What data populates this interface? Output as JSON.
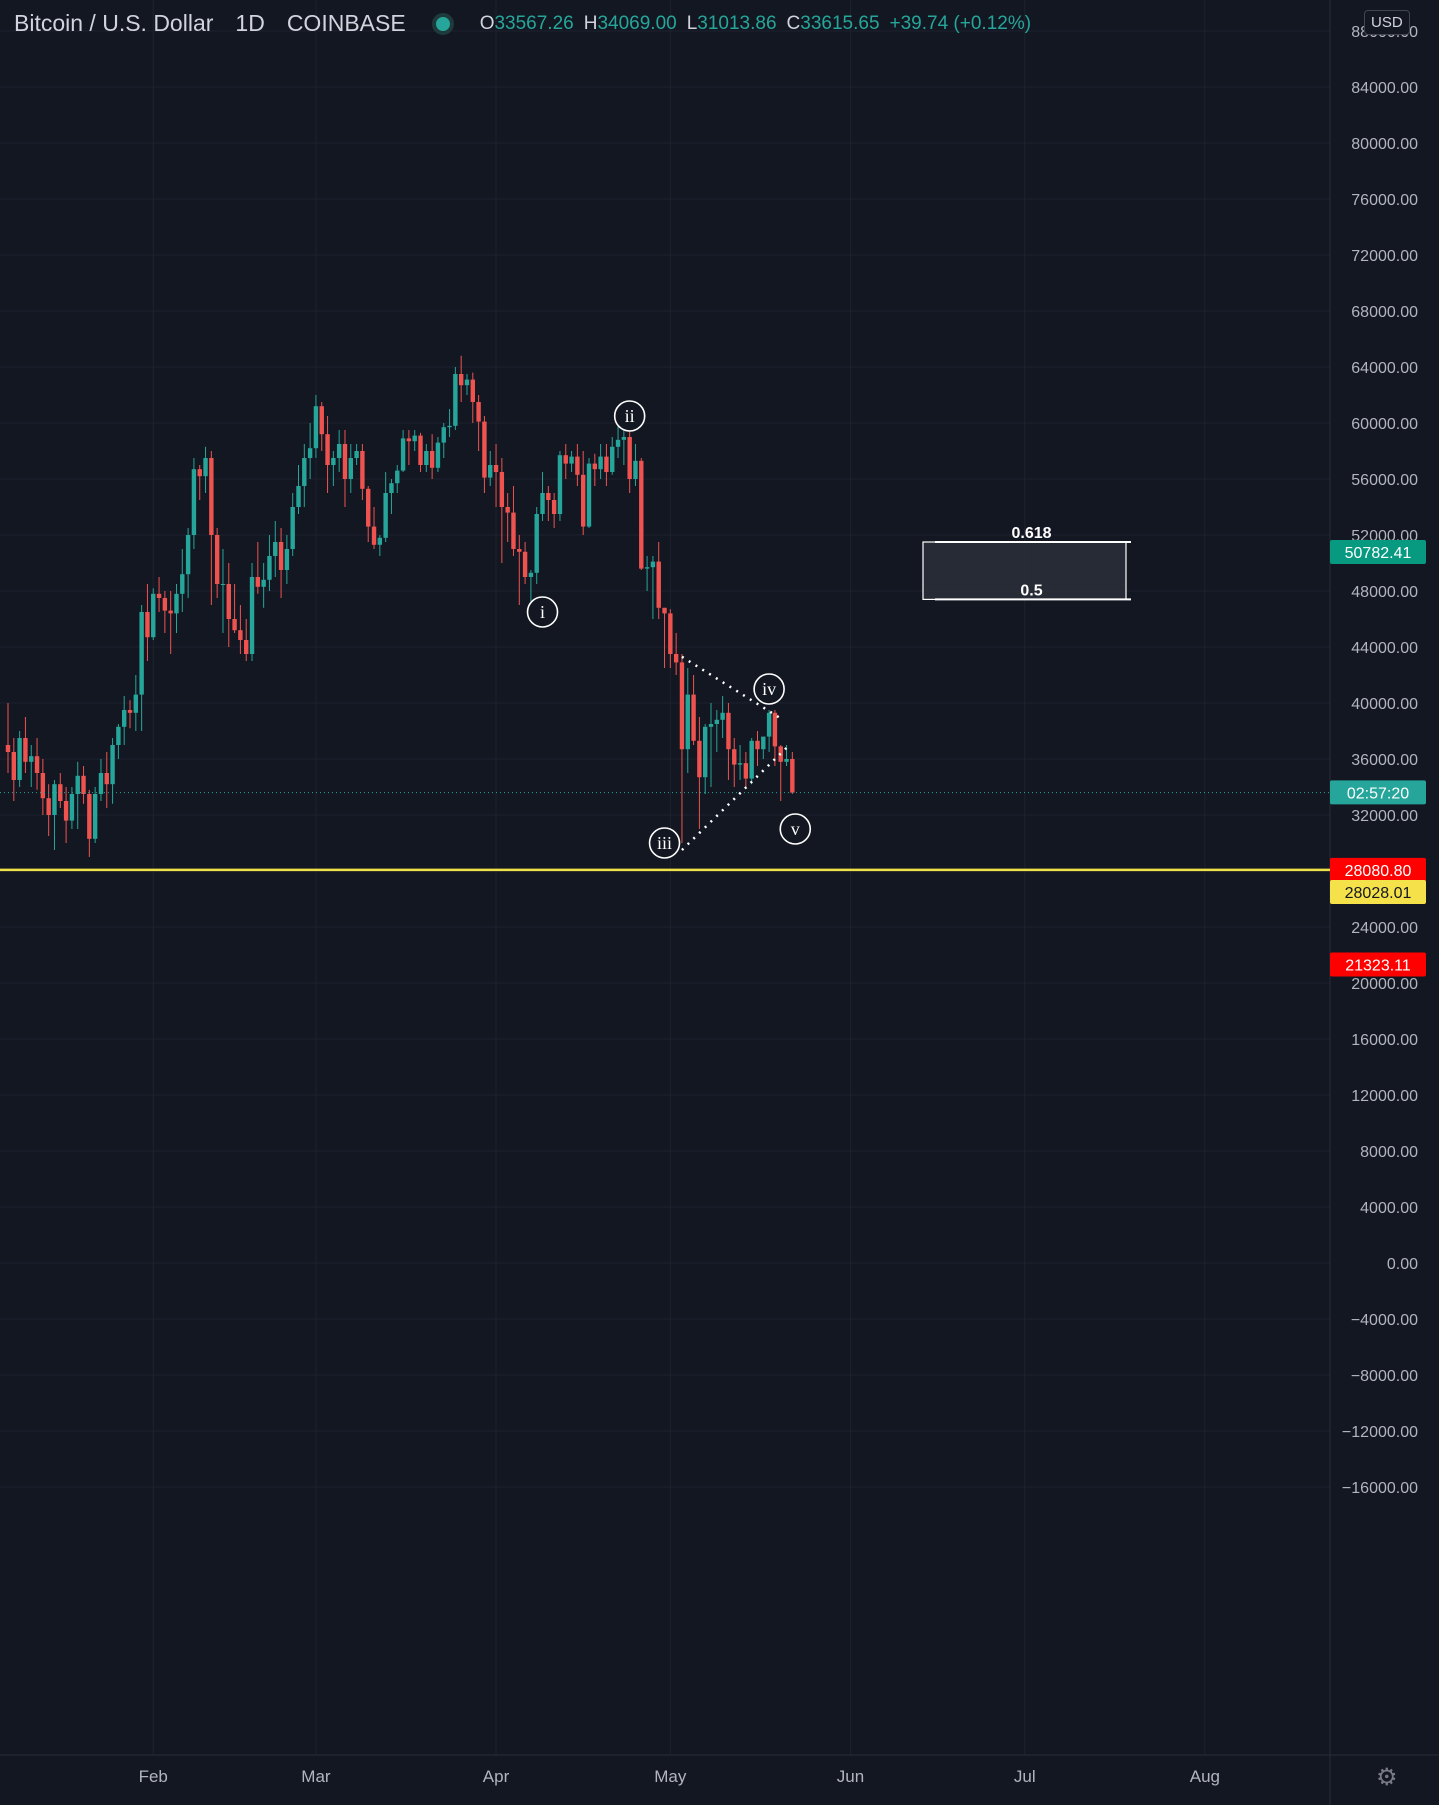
{
  "header": {
    "symbol": "Bitcoin / U.S. Dollar",
    "interval": "1D",
    "exchange": "COINBASE",
    "open_key": "O",
    "open": "33567.26",
    "high_key": "H",
    "high": "34069.00",
    "low_key": "L",
    "low": "31013.86",
    "close_key": "C",
    "close": "33615.65",
    "change": "+39.74 (+0.12%)"
  },
  "currency_button": "USD",
  "settings_icon": "gear-icon",
  "colors": {
    "up": "#26a69a",
    "down": "#ef5350",
    "background": "#131722",
    "grid": "#1e222d",
    "support_line": "#f0e14a"
  },
  "chart_data": {
    "type": "candlestick",
    "symbol": "BTCUSD",
    "ylim": [
      -16000,
      88000
    ],
    "ytick_step": 4000,
    "x_months": [
      "Feb",
      "Mar",
      "Apr",
      "May",
      "Jun",
      "Jul",
      "Aug"
    ],
    "candles_ohlc": [
      [
        37000,
        40000,
        35000,
        36500
      ],
      [
        36500,
        37500,
        33000,
        34500
      ],
      [
        34500,
        38000,
        34000,
        37500
      ],
      [
        37500,
        39000,
        35000,
        35800
      ],
      [
        35800,
        37000,
        34000,
        36200
      ],
      [
        36200,
        37500,
        33800,
        35000
      ],
      [
        35000,
        36000,
        32000,
        33200
      ],
      [
        33200,
        34200,
        30500,
        32000
      ],
      [
        32000,
        34500,
        29500,
        34200
      ],
      [
        34200,
        35000,
        32500,
        33000
      ],
      [
        33000,
        34000,
        30000,
        31600
      ],
      [
        31600,
        34000,
        31000,
        33500
      ],
      [
        33500,
        35800,
        31000,
        34800
      ],
      [
        34800,
        35500,
        32800,
        33500
      ],
      [
        33500,
        33800,
        29000,
        30300
      ],
      [
        30300,
        34000,
        30000,
        33500
      ],
      [
        33500,
        36000,
        33000,
        35000
      ],
      [
        35000,
        36500,
        32500,
        34200
      ],
      [
        34200,
        37500,
        32800,
        37000
      ],
      [
        37000,
        38500,
        36000,
        38300
      ],
      [
        38300,
        40500,
        37000,
        39500
      ],
      [
        39500,
        40200,
        38200,
        39300
      ],
      [
        39300,
        42000,
        38000,
        40600
      ],
      [
        40600,
        47000,
        38000,
        46500
      ],
      [
        46500,
        48500,
        43000,
        44700
      ],
      [
        44700,
        48200,
        44500,
        47800
      ],
      [
        47800,
        49000,
        46500,
        47500
      ],
      [
        47500,
        48000,
        45000,
        46600
      ],
      [
        46600,
        48000,
        43500,
        46400
      ],
      [
        46400,
        48500,
        45000,
        47800
      ],
      [
        47800,
        51000,
        46500,
        49200
      ],
      [
        49200,
        52500,
        47500,
        52000
      ],
      [
        52000,
        57500,
        51000,
        56700
      ],
      [
        56700,
        57000,
        54500,
        56200
      ],
      [
        56200,
        58300,
        55000,
        57500
      ],
      [
        57500,
        58000,
        47000,
        52000
      ],
      [
        52000,
        52500,
        47500,
        48500
      ],
      [
        48500,
        51000,
        45000,
        48500
      ],
      [
        48500,
        50000,
        44000,
        46000
      ],
      [
        46000,
        48500,
        45000,
        45200
      ],
      [
        45200,
        47000,
        43500,
        44500
      ],
      [
        44500,
        46000,
        43000,
        43500
      ],
      [
        43500,
        50000,
        43000,
        49000
      ],
      [
        49000,
        51500,
        47800,
        48300
      ],
      [
        48300,
        50000,
        46800,
        48800
      ],
      [
        48800,
        52000,
        48000,
        50500
      ],
      [
        50500,
        53000,
        49000,
        51500
      ],
      [
        51500,
        52500,
        47500,
        49500
      ],
      [
        49500,
        52000,
        48500,
        51000
      ],
      [
        51000,
        55000,
        50500,
        54000
      ],
      [
        54000,
        57000,
        53500,
        55500
      ],
      [
        55500,
        58500,
        54000,
        57500
      ],
      [
        57500,
        60000,
        56000,
        58200
      ],
      [
        58200,
        62000,
        57500,
        61200
      ],
      [
        61200,
        61500,
        58000,
        59200
      ],
      [
        59200,
        60500,
        55000,
        57000
      ],
      [
        57000,
        58000,
        55500,
        57500
      ],
      [
        57500,
        59500,
        56500,
        58500
      ],
      [
        58500,
        59500,
        54000,
        56000
      ],
      [
        56000,
        58500,
        55000,
        57500
      ],
      [
        57500,
        58500,
        57000,
        58000
      ],
      [
        58000,
        58500,
        54500,
        55300
      ],
      [
        55300,
        55500,
        51500,
        52600
      ],
      [
        52600,
        54000,
        51000,
        51300
      ],
      [
        51300,
        52000,
        50500,
        51800
      ],
      [
        51800,
        56500,
        51500,
        55000
      ],
      [
        55000,
        56000,
        53500,
        55700
      ],
      [
        55700,
        57000,
        55000,
        56600
      ],
      [
        56600,
        59500,
        56500,
        58900
      ],
      [
        58900,
        59500,
        57000,
        58700
      ],
      [
        58700,
        59500,
        58000,
        59100
      ],
      [
        59100,
        59300,
        56500,
        57000
      ],
      [
        57000,
        58500,
        56500,
        58000
      ],
      [
        58000,
        59200,
        56000,
        56800
      ],
      [
        56800,
        59000,
        56500,
        58600
      ],
      [
        58600,
        60000,
        57500,
        59700
      ],
      [
        59700,
        61000,
        59000,
        59800
      ],
      [
        59800,
        64000,
        59500,
        63500
      ],
      [
        63500,
        64800,
        61500,
        62700
      ],
      [
        62700,
        63500,
        62000,
        63100
      ],
      [
        63100,
        63600,
        60000,
        61500
      ],
      [
        61500,
        62000,
        58000,
        60100
      ],
      [
        60100,
        60500,
        55000,
        56100
      ],
      [
        56100,
        58000,
        55500,
        57000
      ],
      [
        57000,
        58500,
        54000,
        56500
      ],
      [
        56500,
        57500,
        50000,
        54000
      ],
      [
        54000,
        55000,
        51500,
        53600
      ],
      [
        53600,
        55500,
        50500,
        51000
      ],
      [
        51000,
        52000,
        47000,
        50800
      ],
      [
        50800,
        51500,
        48500,
        49000
      ],
      [
        49000,
        49500,
        47000,
        49300
      ],
      [
        49300,
        54000,
        48500,
        53500
      ],
      [
        53500,
        56500,
        53000,
        55000
      ],
      [
        55000,
        55500,
        53000,
        54500
      ],
      [
        54500,
        55000,
        52500,
        53500
      ],
      [
        53500,
        58000,
        53000,
        57700
      ],
      [
        57700,
        58500,
        56000,
        57100
      ],
      [
        57100,
        58000,
        56500,
        57600
      ],
      [
        57600,
        58500,
        55500,
        56300
      ],
      [
        56300,
        58000,
        52000,
        52600
      ],
      [
        52600,
        57500,
        52500,
        57100
      ],
      [
        57100,
        57800,
        55500,
        56700
      ],
      [
        56700,
        58500,
        56000,
        57600
      ],
      [
        57600,
        58500,
        55500,
        56500
      ],
      [
        56500,
        59000,
        56300,
        58300
      ],
      [
        58300,
        59800,
        57500,
        58800
      ],
      [
        58800,
        59500,
        57000,
        59000
      ],
      [
        59000,
        59500,
        55000,
        56000
      ],
      [
        56000,
        58500,
        55500,
        57300
      ],
      [
        57300,
        57500,
        49500,
        49600
      ],
      [
        49600,
        50500,
        48000,
        49700
      ],
      [
        49700,
        50500,
        46000,
        50100
      ],
      [
        50100,
        51500,
        46000,
        46800
      ],
      [
        46800,
        46800,
        42500,
        46400
      ],
      [
        46400,
        46700,
        42500,
        43500
      ],
      [
        43500,
        45000,
        42000,
        42900
      ],
      [
        42900,
        43500,
        30000,
        36700
      ],
      [
        36700,
        42500,
        35000,
        40600
      ],
      [
        40600,
        42000,
        37000,
        37300
      ],
      [
        37300,
        39000,
        31000,
        34700
      ],
      [
        34700,
        38500,
        33500,
        38300
      ],
      [
        38300,
        40000,
        34000,
        38500
      ],
      [
        38500,
        39500,
        36500,
        38800
      ],
      [
        38800,
        40500,
        37500,
        39300
      ],
      [
        39300,
        40000,
        34500,
        36700
      ],
      [
        36700,
        37500,
        34000,
        35600
      ],
      [
        35600,
        37000,
        34500,
        35700
      ],
      [
        35700,
        36500,
        34000,
        34600
      ],
      [
        34600,
        37500,
        34200,
        37300
      ],
      [
        37300,
        38000,
        35500,
        36700
      ],
      [
        36700,
        37500,
        36000,
        37600
      ],
      [
        37600,
        39500,
        36500,
        39300
      ],
      [
        39300,
        39500,
        35500,
        36900
      ],
      [
        36900,
        37000,
        33000,
        35800
      ],
      [
        35800,
        37000,
        35500,
        36000
      ],
      [
        36000,
        36500,
        33500,
        33600
      ]
    ],
    "annotations": [
      {
        "label": "i",
        "price": 46500
      },
      {
        "label": "ii",
        "price": 60500
      },
      {
        "label": "iii",
        "price": 30000
      },
      {
        "label": "iv",
        "price": 41000
      },
      {
        "label": "v",
        "price": 31000
      }
    ],
    "fib_box": {
      "top_label": "0.618",
      "top_price": 51500,
      "bottom_label": "0.5",
      "bottom_price": 47400
    },
    "horizontal_line_price": 28080.8,
    "price_tags": [
      {
        "text": "50782.41",
        "price": 50782.41,
        "bg": "#089981",
        "color": "#ffffff"
      },
      {
        "text": "02:57:20",
        "price": 33615.65,
        "bg": "#26a69a",
        "color": "#ffffff"
      },
      {
        "text": "28080.80",
        "price": 28080.8,
        "bg": "#ff0000",
        "color": "#ffffff"
      },
      {
        "text": "28028.01",
        "price": 26500,
        "bg": "#f5e14a",
        "color": "#131722"
      },
      {
        "text": "21323.11",
        "price": 21323.11,
        "bg": "#ff0000",
        "color": "#ffffff"
      }
    ]
  }
}
